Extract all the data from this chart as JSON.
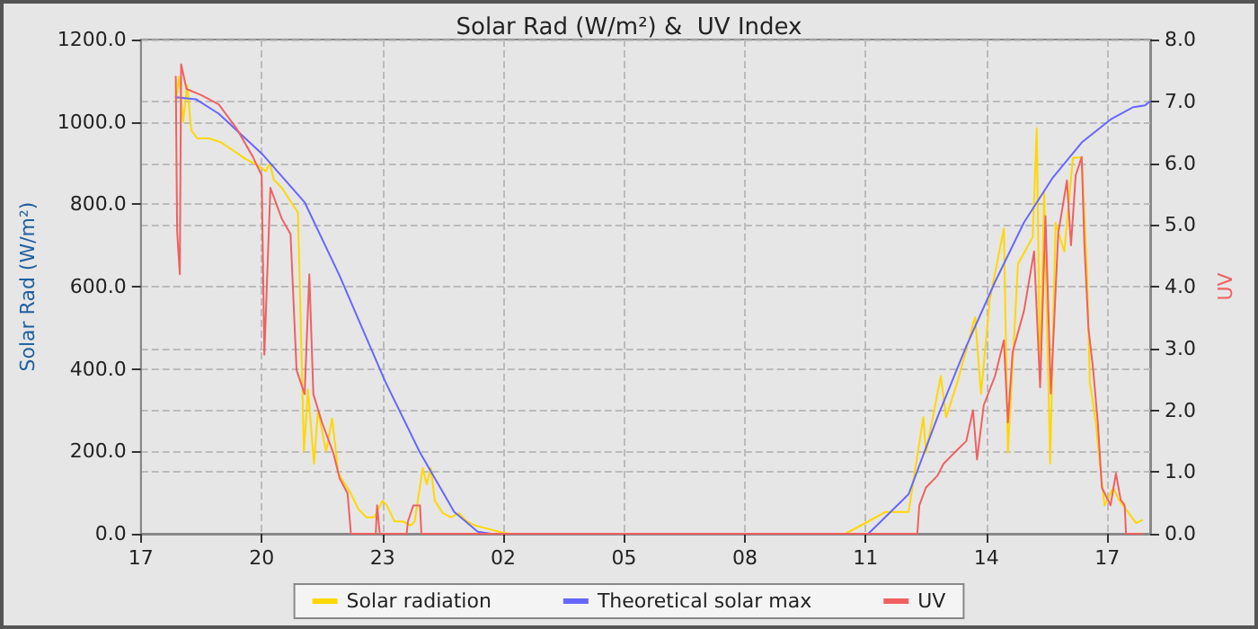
{
  "chart_data": {
    "type": "line",
    "title": "Solar Rad (W/m²) &  UV Index",
    "ylabel": "Solar Rad (W/m²)",
    "y2label": "UV",
    "xlim": [
      "--01-01T17:00",
      "--01-02T18:04"
    ],
    "xticks": [
      {
        "value": "--01-01T17:00",
        "label": "17"
      },
      {
        "value": "--01-01T20:00",
        "label": "20"
      },
      {
        "value": "--01-01T23:00",
        "label": "23"
      },
      {
        "value": "--01-02T02:00",
        "label": "02"
      },
      {
        "value": "--01-02T05:00",
        "label": "05"
      },
      {
        "value": "--01-02T08:00",
        "label": "08"
      },
      {
        "value": "--01-02T11:00",
        "label": "11"
      },
      {
        "value": "--01-02T14:00",
        "label": "14"
      },
      {
        "value": "--01-02T17:00",
        "label": "17"
      }
    ],
    "ylim": [
      0,
      1200
    ],
    "yticks": [
      {
        "value": 0,
        "label": "0.0"
      },
      {
        "value": 200,
        "label": "200.0"
      },
      {
        "value": 400,
        "label": "400.0"
      },
      {
        "value": 600,
        "label": "600.0"
      },
      {
        "value": 800,
        "label": "800.0"
      },
      {
        "value": 1000,
        "label": "1000.0"
      },
      {
        "value": 1200,
        "label": "1200.0"
      }
    ],
    "y2lim": [
      0,
      8
    ],
    "y2ticks": [
      {
        "value": 0,
        "label": "0.0"
      },
      {
        "value": 1,
        "label": "1.0"
      },
      {
        "value": 2,
        "label": "2.0"
      },
      {
        "value": 3,
        "label": "3.0"
      },
      {
        "value": 4,
        "label": "4.0"
      },
      {
        "value": 5,
        "label": "5.0"
      },
      {
        "value": 6,
        "label": "6.0"
      },
      {
        "value": 7,
        "label": "7.0"
      },
      {
        "value": 8,
        "label": "8.0"
      }
    ],
    "grid": true,
    "legend": "bottom",
    "marker": "none",
    "series": [
      {
        "name": "Solar radiation",
        "color": "#ffd700",
        "x": [
          "--01-01T17:52",
          "--01-01T17:57",
          "--01-01T18:03",
          "--01-01T18:09",
          "--01-01T18:15",
          "--01-01T18:24",
          "--01-01T18:42",
          "--01-01T19:00",
          "--01-01T19:18",
          "--01-01T19:36",
          "--01-01T19:54",
          "--01-01T20:06",
          "--01-01T20:12",
          "--01-01T20:18",
          "--01-01T20:30",
          "--01-01T20:42",
          "--01-01T20:54",
          "--01-01T21:00",
          "--01-01T21:03",
          "--01-01T21:09",
          "--01-01T21:18",
          "--01-01T21:24",
          "--01-01T21:36",
          "--01-01T21:45",
          "--01-01T21:54",
          "--01-01T22:00",
          "--01-01T22:12",
          "--01-01T22:24",
          "--01-01T22:36",
          "--01-01T22:48",
          "--01-01T23:00",
          "--01-01T23:06",
          "--01-01T23:18",
          "--01-01T23:30",
          "--01-01T23:42",
          "--01-01T23:48",
          "--01-02T00:00",
          "--01-02T00:06",
          "--01-02T00:12",
          "--01-02T00:18",
          "--01-02T00:30",
          "--01-02T00:42",
          "--01-02T00:54",
          "--01-02T01:06",
          "--01-02T01:18",
          "--01-02T01:30",
          "--01-02T01:42",
          "--01-02T02:00",
          "--01-02T02:12",
          "--01-02T10:30",
          "--01-02T11:04",
          "--01-02T11:30",
          "--01-02T12:04",
          "--01-02T12:26",
          "--01-02T12:30",
          "--01-02T12:52",
          "--01-02T13:00",
          "--01-02T13:17",
          "--01-02T13:43",
          "--01-02T13:52",
          "--01-02T14:05",
          "--01-02T14:26",
          "--01-02T14:32",
          "--01-02T14:47",
          "--01-02T15:09",
          "--01-02T15:15",
          "--01-02T15:20",
          "--01-02T15:26",
          "--01-02T15:35",
          "--01-02T15:43",
          "--01-02T15:56",
          "--01-02T16:09",
          "--01-02T16:22",
          "--01-02T16:30",
          "--01-02T16:34",
          "--01-02T16:43",
          "--01-02T16:49",
          "--01-02T16:56",
          "--01-02T17:09",
          "--01-02T17:17",
          "--01-02T17:30",
          "--01-02T17:43",
          "--01-02T17:52"
        ],
        "values": [
          1050,
          1110,
          1000,
          1090,
          980,
          960,
          960,
          950,
          930,
          910,
          895,
          880,
          900,
          860,
          840,
          810,
          780,
          400,
          200,
          350,
          170,
          300,
          200,
          280,
          150,
          130,
          100,
          60,
          40,
          40,
          80,
          70,
          30,
          30,
          20,
          30,
          160,
          120,
          160,
          80,
          50,
          40,
          50,
          30,
          20,
          15,
          10,
          2,
          0,
          0,
          30,
          53,
          53,
          283,
          197,
          383,
          283,
          370,
          526,
          340,
          569,
          741,
          197,
          655,
          720,
          985,
          370,
          830,
          170,
          755,
          685,
          913,
          913,
          627,
          370,
          270,
          170,
          69,
          112,
          83,
          55,
          26,
          33
        ]
      },
      {
        "name": "Theoretical solar max",
        "color": "#6666ff",
        "x": [
          "--01-01T17:52",
          "--01-01T18:22",
          "--01-01T18:56",
          "--01-01T20:02",
          "--01-01T21:04",
          "--01-01T21:56",
          "--01-01T23:04",
          "--01-01T23:56",
          "--01-02T00:47",
          "--01-02T01:22",
          "--01-02T01:42",
          "--01-02T11:04",
          "--01-02T12:04",
          "--01-02T12:47",
          "--01-02T13:30",
          "--01-02T14:13",
          "--01-02T14:56",
          "--01-02T15:39",
          "--01-02T16:22",
          "--01-02T17:05",
          "--01-02T17:39",
          "--01-02T17:56",
          "--01-02T18:04"
        ],
        "values": [
          1060,
          1055,
          1020,
          920,
          805,
          627,
          370,
          197,
          53,
          5,
          0,
          0,
          96,
          283,
          455,
          612,
          756,
          865,
          950,
          1006,
          1036,
          1040,
          1050
        ]
      },
      {
        "name": "UV",
        "color": "#f06060",
        "axis": "y2",
        "x": [
          "--01-01T17:52",
          "--01-01T17:54",
          "--01-01T17:58",
          "--01-01T18:00",
          "--01-01T18:08",
          "--01-01T18:30",
          "--01-01T18:56",
          "--01-01T19:22",
          "--01-01T19:47",
          "--01-01T20:00",
          "--01-01T20:04",
          "--01-01T20:13",
          "--01-01T20:30",
          "--01-01T20:43",
          "--01-01T20:52",
          "--01-01T21:04",
          "--01-01T21:11",
          "--01-01T21:17",
          "--01-01T21:30",
          "--01-01T21:47",
          "--01-01T21:56",
          "--01-01T22:08",
          "--01-01T22:13",
          "--01-01T22:50",
          "--01-01T22:52",
          "--01-01T22:56",
          "--01-01T23:36",
          "--01-01T23:38",
          "--01-01T23:46",
          "--01-01T23:56",
          "--01-01T23:58",
          "--01-02T12:17",
          "--01-02T12:20",
          "--01-02T12:30",
          "--01-02T12:47",
          "--01-02T12:56",
          "--01-02T13:13",
          "--01-02T13:30",
          "--01-02T13:40",
          "--01-02T13:46",
          "--01-02T13:56",
          "--01-02T14:13",
          "--01-02T14:26",
          "--01-02T14:32",
          "--01-02T14:39",
          "--01-02T14:56",
          "--01-02T15:11",
          "--01-02T15:20",
          "--01-02T15:28",
          "--01-02T15:36",
          "--01-02T15:47",
          "--01-02T16:00",
          "--01-02T16:06",
          "--01-02T16:13",
          "--01-02T16:22",
          "--01-02T16:26",
          "--01-02T16:32",
          "--01-02T16:39",
          "--01-02T16:46",
          "--01-02T16:52",
          "--01-02T17:05",
          "--01-02T17:13",
          "--01-02T17:20",
          "--01-02T17:26",
          "--01-02T17:28",
          "--01-02T17:52"
        ],
        "values": [
          7.4,
          4.9,
          4.2,
          7.6,
          7.2,
          7.1,
          6.95,
          6.57,
          6.1,
          5.8,
          2.9,
          5.6,
          5.1,
          4.85,
          2.65,
          2.26,
          4.2,
          2.26,
          1.8,
          1.3,
          0.9,
          0.65,
          0,
          0,
          0.46,
          0,
          0,
          0.2,
          0.46,
          0.46,
          0,
          0,
          0.46,
          0.75,
          0.94,
          1.13,
          1.32,
          1.5,
          2.0,
          1.2,
          2.08,
          2.56,
          3.13,
          1.8,
          2.94,
          3.61,
          4.57,
          2.37,
          5.14,
          2.27,
          4.86,
          5.72,
          4.67,
          5.8,
          6.1,
          4.67,
          3.33,
          2.66,
          1.8,
          0.75,
          0.46,
          0.98,
          0.55,
          0.46,
          0,
          0
        ]
      }
    ]
  }
}
